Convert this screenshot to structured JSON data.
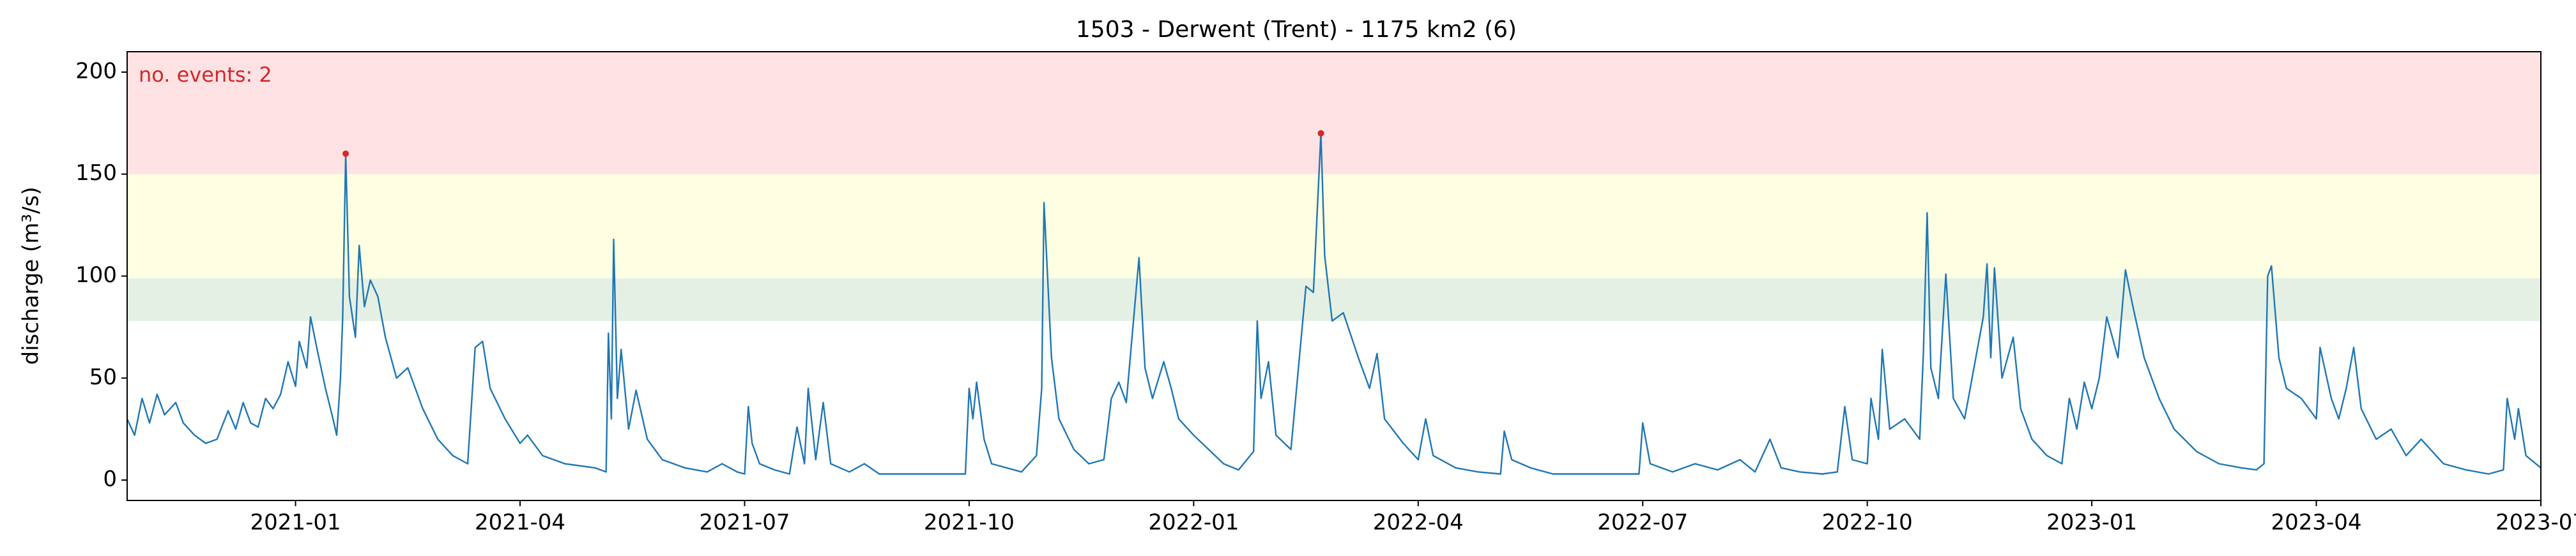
{
  "chart_data": {
    "type": "line",
    "title": "1503 - Derwent (Trent) - 1175 km2 (6)",
    "y_label": "discharge (m³/s)",
    "annotation": "no. events: 2",
    "xlim": [
      -2.25,
      30
    ],
    "ylim": [
      -10,
      210
    ],
    "xticks": [
      {
        "value": 0,
        "label": "2021-01"
      },
      {
        "value": 3,
        "label": "2021-04"
      },
      {
        "value": 6,
        "label": "2021-07"
      },
      {
        "value": 9,
        "label": "2021-10"
      },
      {
        "value": 12,
        "label": "2022-01"
      },
      {
        "value": 15,
        "label": "2022-04"
      },
      {
        "value": 18,
        "label": "2022-07"
      },
      {
        "value": 21,
        "label": "2022-10"
      },
      {
        "value": 24,
        "label": "2023-01"
      },
      {
        "value": 27,
        "label": "2023-04"
      },
      {
        "value": 30,
        "label": "2023-07"
      }
    ],
    "yticks": [
      0,
      50,
      100,
      150,
      200
    ],
    "bands": [
      {
        "from": 78,
        "to": 99,
        "color": "#e4f0e4"
      },
      {
        "from": 99,
        "to": 150,
        "color": "#fefee2"
      },
      {
        "from": 150,
        "to": 210,
        "color": "#fee2e4"
      }
    ],
    "series": [
      {
        "color": "#1f77b4",
        "x": [
          -2.25,
          -2.15,
          -2.05,
          -1.95,
          -1.85,
          -1.75,
          -1.6,
          -1.5,
          -1.35,
          -1.2,
          -1.05,
          -0.9,
          -0.8,
          -0.7,
          -0.6,
          -0.5,
          -0.4,
          -0.3,
          -0.2,
          -0.1,
          0.0,
          0.05,
          0.15,
          0.2,
          0.3,
          0.4,
          0.5,
          0.55,
          0.6,
          0.63,
          0.67,
          0.72,
          0.8,
          0.85,
          0.92,
          1.0,
          1.1,
          1.2,
          1.35,
          1.5,
          1.7,
          1.9,
          2.1,
          2.3,
          2.4,
          2.5,
          2.6,
          2.8,
          3.0,
          3.1,
          3.3,
          3.6,
          4.0,
          4.15,
          4.18,
          4.22,
          4.25,
          4.3,
          4.35,
          4.45,
          4.55,
          4.7,
          4.9,
          5.2,
          5.5,
          5.7,
          5.9,
          6.0,
          6.05,
          6.1,
          6.2,
          6.4,
          6.6,
          6.7,
          6.8,
          6.85,
          6.95,
          7.05,
          7.15,
          7.4,
          7.6,
          7.8,
          8.3,
          8.8,
          8.95,
          9.0,
          9.05,
          9.1,
          9.2,
          9.3,
          9.7,
          9.9,
          9.97,
          10.0,
          10.1,
          10.2,
          10.4,
          10.6,
          10.8,
          10.9,
          11.0,
          11.1,
          11.27,
          11.35,
          11.45,
          11.6,
          11.7,
          11.8,
          12.0,
          12.2,
          12.4,
          12.6,
          12.8,
          12.85,
          12.9,
          13.0,
          13.1,
          13.3,
          13.5,
          13.6,
          13.7,
          13.75,
          13.85,
          14.0,
          14.2,
          14.35,
          14.45,
          14.55,
          14.8,
          15.0,
          15.1,
          15.2,
          15.5,
          15.8,
          16.1,
          16.15,
          16.25,
          16.5,
          16.8,
          17.3,
          17.95,
          18.0,
          18.1,
          18.4,
          18.7,
          19.0,
          19.3,
          19.5,
          19.7,
          19.85,
          20.1,
          20.4,
          20.6,
          20.7,
          20.8,
          21.0,
          21.05,
          21.15,
          21.2,
          21.3,
          21.5,
          21.7,
          21.75,
          21.8,
          21.85,
          21.95,
          22.05,
          22.15,
          22.3,
          22.55,
          22.6,
          22.65,
          22.7,
          22.8,
          22.95,
          23.05,
          23.2,
          23.4,
          23.6,
          23.7,
          23.8,
          23.9,
          24.0,
          24.1,
          24.2,
          24.35,
          24.45,
          24.55,
          24.7,
          24.9,
          25.1,
          25.4,
          25.7,
          26.0,
          26.2,
          26.3,
          26.35,
          26.4,
          26.5,
          26.6,
          26.8,
          27.0,
          27.05,
          27.2,
          27.3,
          27.4,
          27.5,
          27.6,
          27.8,
          28.0,
          28.2,
          28.4,
          28.7,
          29.0,
          29.3,
          29.5,
          29.55,
          29.65,
          29.7,
          29.8,
          30.0
        ],
        "values": [
          30,
          22,
          40,
          28,
          42,
          32,
          38,
          28,
          22,
          18,
          20,
          34,
          25,
          38,
          28,
          26,
          40,
          35,
          42,
          58,
          46,
          68,
          55,
          80,
          62,
          45,
          30,
          22,
          50,
          80,
          160,
          90,
          70,
          115,
          85,
          98,
          90,
          70,
          50,
          55,
          35,
          20,
          12,
          8,
          65,
          68,
          45,
          30,
          18,
          22,
          12,
          8,
          6,
          4,
          72,
          30,
          118,
          40,
          64,
          25,
          44,
          20,
          10,
          6,
          4,
          8,
          4,
          3,
          36,
          18,
          8,
          5,
          3,
          26,
          8,
          45,
          10,
          38,
          8,
          4,
          8,
          3,
          3,
          3,
          3,
          45,
          30,
          48,
          20,
          8,
          4,
          12,
          45,
          136,
          60,
          30,
          15,
          8,
          10,
          40,
          48,
          38,
          109,
          55,
          40,
          58,
          45,
          30,
          22,
          15,
          8,
          5,
          14,
          78,
          40,
          58,
          22,
          15,
          95,
          92,
          170,
          110,
          78,
          82,
          60,
          45,
          62,
          30,
          18,
          10,
          30,
          12,
          6,
          4,
          3,
          24,
          10,
          6,
          3,
          3,
          3,
          28,
          8,
          4,
          8,
          5,
          10,
          4,
          20,
          6,
          4,
          3,
          4,
          36,
          10,
          8,
          40,
          20,
          64,
          25,
          30,
          20,
          62,
          131,
          55,
          40,
          101,
          40,
          30,
          80,
          106,
          60,
          104,
          50,
          70,
          35,
          20,
          12,
          8,
          40,
          25,
          48,
          35,
          50,
          80,
          60,
          103,
          85,
          60,
          40,
          25,
          14,
          8,
          6,
          5,
          8,
          100,
          105,
          60,
          45,
          40,
          30,
          65,
          40,
          30,
          45,
          65,
          35,
          20,
          25,
          12,
          20,
          8,
          5,
          3,
          5,
          40,
          20,
          35,
          12,
          6
        ]
      }
    ],
    "events": {
      "color": "#d62728",
      "x": [
        0.67,
        13.7
      ],
      "values": [
        160,
        170
      ]
    }
  }
}
